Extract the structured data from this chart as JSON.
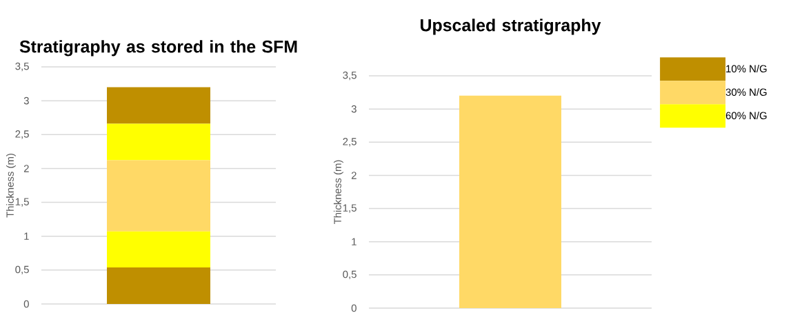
{
  "chart_data": [
    {
      "type": "bar",
      "stacked": true,
      "title": "Stratigraphy as stored in the SFM",
      "ylabel": "Thickness (m)",
      "categories": [
        null
      ],
      "series": [
        {
          "name": "10% N/G",
          "color": "#bf8f00",
          "values": [
            0.54
          ]
        },
        {
          "name": "60% N/G",
          "color": "#ffff00",
          "values": [
            0.53
          ]
        },
        {
          "color": "#ffd966",
          "values": [
            1.05
          ]
        },
        {
          "color": "#ffff00",
          "values": [
            0.54
          ]
        },
        {
          "color": "#bf8f00",
          "values": [
            0.54
          ]
        }
      ],
      "ylim": [
        0,
        3.5
      ],
      "yticks": [
        0,
        {
          "value": 0.5,
          "label": "0,5"
        },
        1,
        {
          "value": 1.5,
          "label": "1,5"
        },
        2,
        {
          "value": 2.5,
          "label": "2,5"
        },
        3,
        {
          "value": 3.5,
          "label": "3,5"
        }
      ],
      "grid": "y"
    },
    {
      "type": "bar",
      "title": "Upscaled stratigraphy",
      "ylabel": "Thickness (m)",
      "categories": [
        null
      ],
      "series": [
        {
          "name": "30% N/G",
          "color": "#ffd966",
          "values": [
            3.2
          ]
        }
      ],
      "ylim": [
        0,
        3.5
      ],
      "yticks": [
        0,
        {
          "value": 0.5,
          "label": "0,5"
        },
        1,
        {
          "value": 1.5,
          "label": "1,5"
        },
        2,
        {
          "value": 2.5,
          "label": "2,5"
        },
        3,
        {
          "value": 3.5,
          "label": "3,5"
        }
      ],
      "grid": "y",
      "legend": "right"
    }
  ]
}
